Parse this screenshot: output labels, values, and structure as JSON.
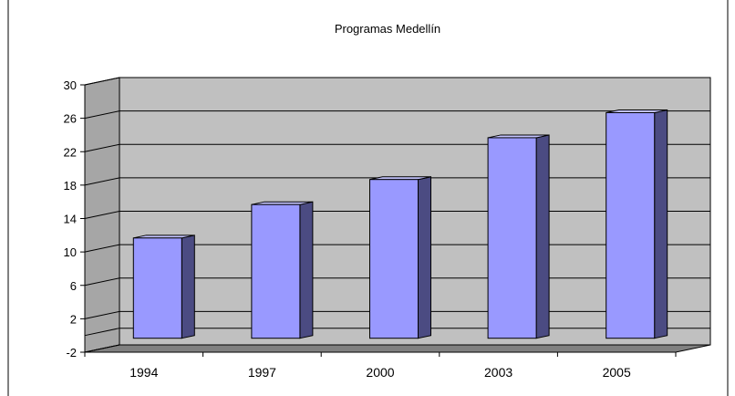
{
  "chart_data": {
    "type": "bar",
    "title": "Programas Medellín",
    "categories": [
      "1994",
      "1997",
      "2000",
      "2003",
      "2005"
    ],
    "values": [
      12,
      16,
      19,
      24,
      27
    ],
    "y_ticks": [
      "-2",
      "2",
      "6",
      "10",
      "14",
      "18",
      "22",
      "26",
      "30"
    ],
    "ylim": [
      -2,
      30
    ],
    "grid": true,
    "legend": "none",
    "colors": {
      "bar_front": "#9999ff",
      "bar_side": "#4b4b82",
      "bar_top": "#c4c4ff",
      "wall": "#c0c0c0",
      "wall_side": "#a6a6a6",
      "floor": "#808080"
    }
  }
}
